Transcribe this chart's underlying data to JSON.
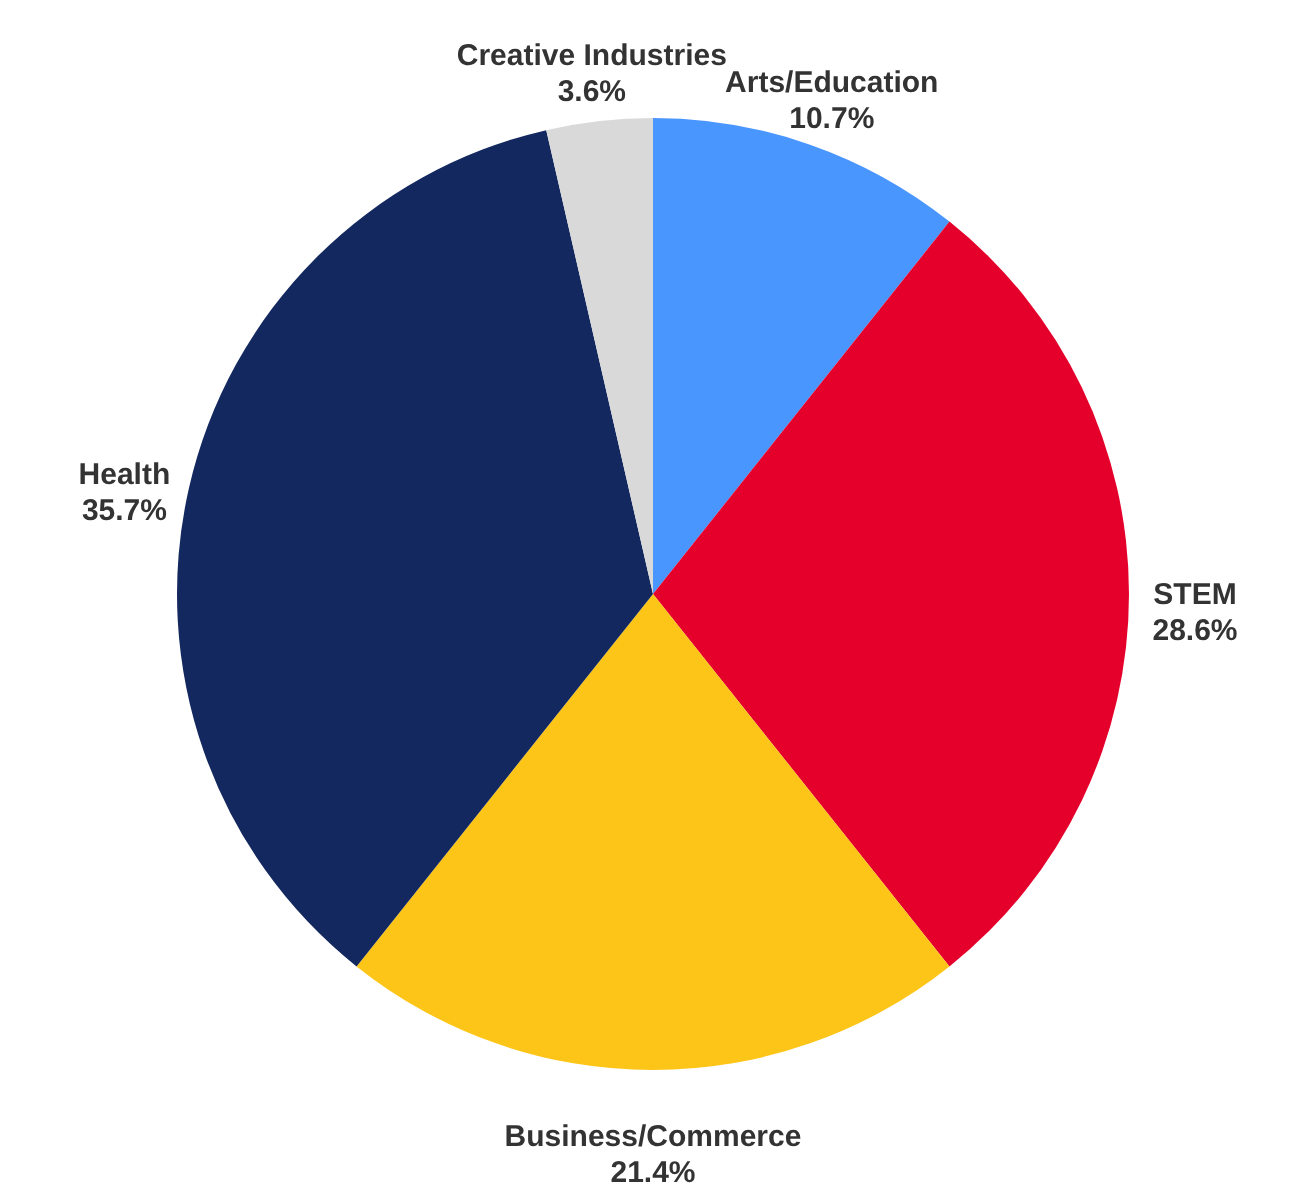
{
  "chart_data": {
    "type": "pie",
    "categories": [
      "Arts/Education",
      "STEM",
      "Business/Commerce",
      "Health",
      "Creative Industries"
    ],
    "values": [
      10.7,
      28.6,
      21.4,
      35.7,
      3.6
    ],
    "colors": [
      "#4a96ff",
      "#e4002b",
      "#fdc517",
      "#13285e",
      "#d9d9d9"
    ],
    "value_labels": [
      "10.7%",
      "28.6%",
      "21.4%",
      "35.7%",
      "3.6%"
    ]
  }
}
